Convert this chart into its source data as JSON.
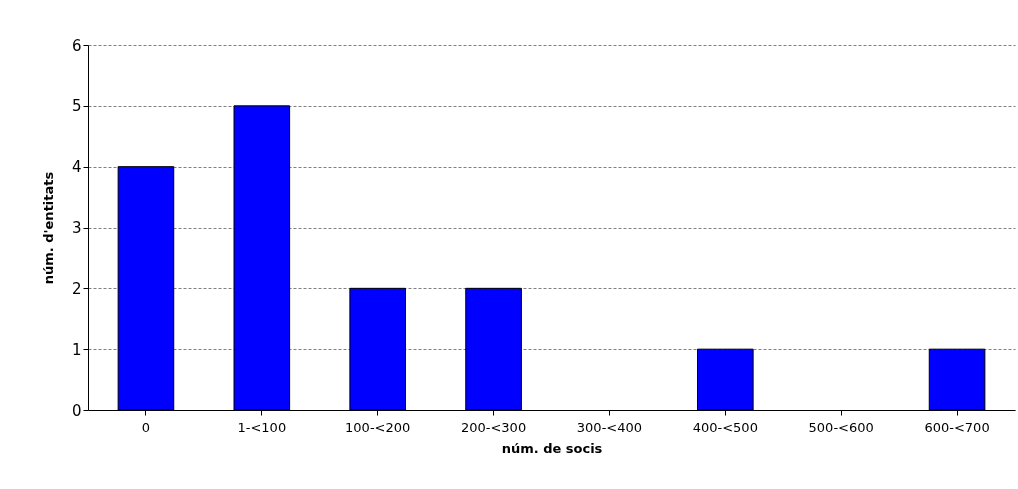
{
  "chart_data": {
    "type": "bar",
    "xlabel": "núm. de socis",
    "ylabel": "núm. d'entitats",
    "categories": [
      "0",
      "1-<100",
      "100-<200",
      "200-<300",
      "300-<400",
      "400-<500",
      "500-<600",
      "600-<700"
    ],
    "values": [
      4,
      5,
      2,
      2,
      0,
      1,
      0,
      1
    ],
    "color": "#0000ff",
    "ylim": [
      0,
      6
    ],
    "yticks": [
      0,
      1,
      2,
      3,
      4,
      5,
      6
    ],
    "grid": "y"
  }
}
